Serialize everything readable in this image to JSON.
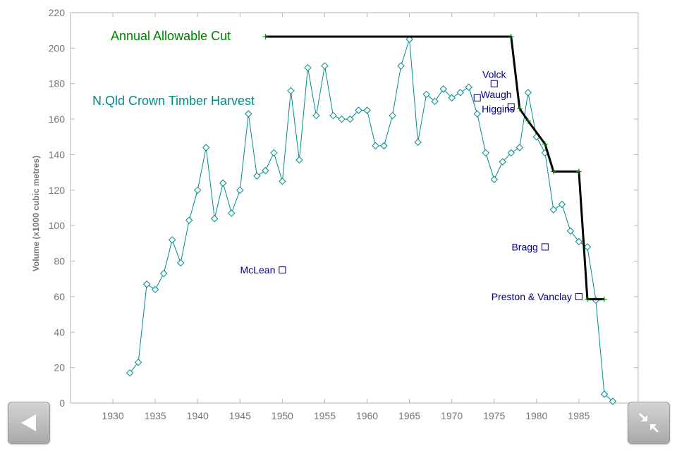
{
  "chart_data": {
    "type": "line",
    "title": "",
    "xlabel": "",
    "ylabel": "Volume (x1000 cubic metres)",
    "xlim": [
      1925,
      1992
    ],
    "ylim": [
      0,
      220
    ],
    "x_ticks": [
      1930,
      1935,
      1940,
      1945,
      1950,
      1955,
      1960,
      1965,
      1970,
      1975,
      1980,
      1985
    ],
    "y_ticks": [
      0,
      20,
      40,
      60,
      80,
      100,
      120,
      140,
      160,
      180,
      200,
      220
    ],
    "grid": false,
    "series": [
      {
        "name": "N.Qld Crown Timber Harvest",
        "color": "#008b8b",
        "marker": "diamond",
        "x": [
          1932,
          1933,
          1934,
          1935,
          1936,
          1937,
          1938,
          1939,
          1940,
          1941,
          1942,
          1943,
          1944,
          1945,
          1946,
          1947,
          1948,
          1949,
          1950,
          1951,
          1952,
          1953,
          1954,
          1955,
          1956,
          1957,
          1958,
          1959,
          1960,
          1961,
          1962,
          1963,
          1964,
          1965,
          1966,
          1967,
          1968,
          1969,
          1970,
          1971,
          1972,
          1973,
          1974,
          1975,
          1976,
          1977,
          1978,
          1979,
          1980,
          1981,
          1982,
          1983,
          1984,
          1985,
          1986,
          1987,
          1988,
          1989
        ],
        "values": [
          17,
          23,
          67,
          64,
          73,
          92,
          79,
          103,
          120,
          144,
          104,
          124,
          107,
          120,
          163,
          128,
          131,
          141,
          125,
          176,
          137,
          189,
          162,
          190,
          162,
          160,
          160,
          165,
          165,
          145,
          145,
          162,
          190,
          205,
          147,
          174,
          170,
          177,
          172,
          175,
          178,
          163,
          141,
          126,
          136,
          141,
          144,
          175,
          150,
          141,
          109,
          112,
          97,
          91,
          88,
          58,
          5,
          1
        ]
      },
      {
        "name": "Annual Allowable Cut",
        "color": "#000000",
        "marker": "plus",
        "x": [
          1948,
          1977,
          1978,
          1979,
          1981,
          1982,
          1985,
          1986,
          1988
        ],
        "values": [
          206.5,
          206.5,
          166,
          159,
          146,
          130.5,
          130.5,
          58.5,
          58.5
        ]
      }
    ],
    "annotations": [
      {
        "label": "McLean",
        "x": 1950,
        "y": 75
      },
      {
        "label": "Volck",
        "x": 1975,
        "y": 180
      },
      {
        "label": "Waugh",
        "x": 1973,
        "y": 172
      },
      {
        "label": "Higgins",
        "x": 1977,
        "y": 167
      },
      {
        "label": "Bragg",
        "x": 1981,
        "y": 88
      },
      {
        "label": "Preston & Vanclay",
        "x": 1985,
        "y": 60
      }
    ],
    "series_labels": [
      {
        "label": "Annual Allowable Cut",
        "color": "#008000"
      },
      {
        "label": "N.Qld Crown Timber Harvest",
        "color": "#008b8b"
      }
    ],
    "annotation_color": "#000080"
  },
  "controls": {
    "back_label": "Back",
    "shrink_label": "Exit full screen"
  }
}
